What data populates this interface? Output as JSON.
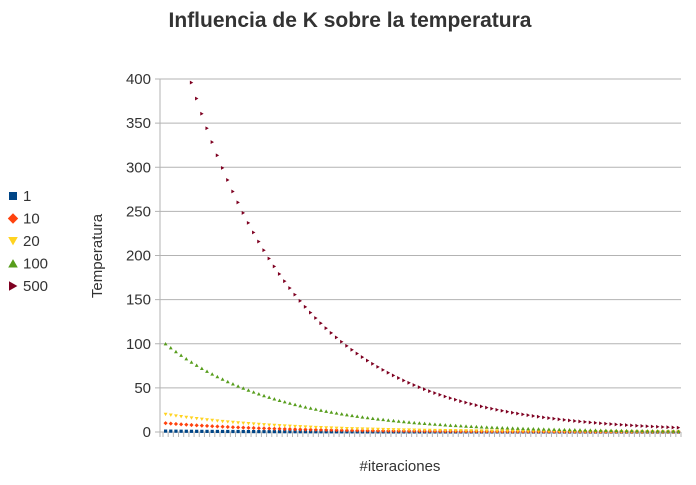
{
  "chart_data": {
    "type": "scatter",
    "title": "Influencia de K sobre la temperatura",
    "xlabel": "#iteraciones",
    "ylabel": "Temperatura",
    "ylim": [
      0,
      400
    ],
    "yticks": [
      "0",
      "50",
      "100",
      "150",
      "200",
      "250",
      "300",
      "350",
      "400"
    ],
    "x_count": 100,
    "grid": "horizontal",
    "legend_position": "left",
    "decay_per_iteration": 0.9544,
    "series": [
      {
        "name": "1",
        "start": 1,
        "color": "#004586",
        "marker": "square"
      },
      {
        "name": "10",
        "start": 10,
        "color": "#ff420e",
        "marker": "diamond"
      },
      {
        "name": "20",
        "start": 20,
        "color": "#ffd320",
        "marker": "triangle-down"
      },
      {
        "name": "100",
        "start": 100,
        "color": "#579d1c",
        "marker": "triangle-up"
      },
      {
        "name": "500",
        "start": 500,
        "color": "#7e0021",
        "marker": "triangle-right"
      }
    ]
  }
}
